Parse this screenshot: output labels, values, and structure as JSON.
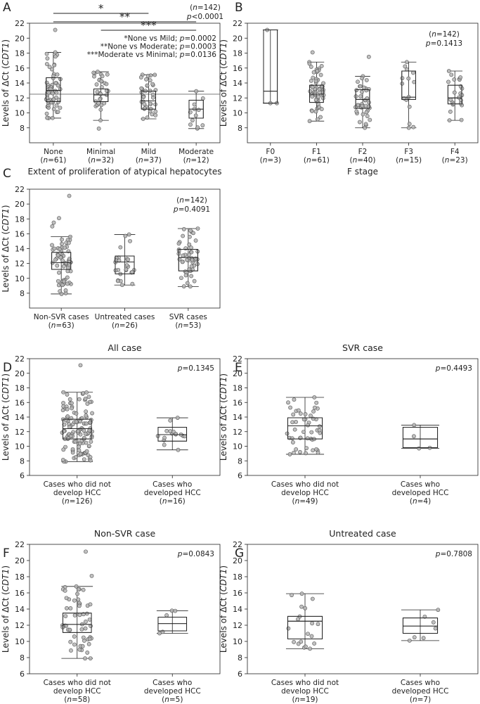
{
  "chart_data": [
    {
      "id": "A",
      "type": "box",
      "panel_label": "A",
      "ylabel": "Levels of ΔCt (CDT1)",
      "xlabel": "Extent of proliferation of atypical hepatocytes",
      "ylim": [
        6,
        22
      ],
      "yticks": [
        8,
        10,
        12,
        14,
        16,
        18,
        20,
        22
      ],
      "n_total": "(n=142)",
      "p_value": "p<0.0001",
      "reference_line": 12.5,
      "annotations": [
        "*None vs Mild; p=0.0002",
        "**None vs Moderate; p=0.0003",
        "***Moderate vs Minimal; p=0.0136"
      ],
      "brackets": [
        {
          "label": "*",
          "from": 0,
          "to": 2
        },
        {
          "label": "**",
          "from": 0,
          "to": 3
        },
        {
          "label": "***",
          "from": 1,
          "to": 3
        }
      ],
      "categories": [
        {
          "label": "None",
          "n": "(n=61)",
          "whisker_low": 9.3,
          "q1": 11.5,
          "median": 13.0,
          "q3": 14.7,
          "whisker_high": 18.1,
          "count": 61,
          "outliers": [
            21.1
          ]
        },
        {
          "label": "Minimal",
          "n": "(n=32)",
          "whisker_low": 9.0,
          "q1": 11.5,
          "median": 12.4,
          "q3": 13.2,
          "whisker_high": 15.5,
          "count": 32,
          "outliers": [
            7.9
          ]
        },
        {
          "label": "Mild",
          "n": "(n=37)",
          "whisker_low": 9.2,
          "q1": 10.5,
          "median": 11.6,
          "q3": 12.9,
          "whisker_high": 15.1,
          "count": 37,
          "outliers": []
        },
        {
          "label": "Moderate",
          "n": "(n=12)",
          "whisker_low": 7.9,
          "q1": 9.3,
          "median": 10.5,
          "q3": 11.7,
          "whisker_high": 12.9,
          "count": 12,
          "outliers": []
        }
      ]
    },
    {
      "id": "B",
      "type": "box",
      "panel_label": "B",
      "ylabel": "Levels of ΔCt (CDT1)",
      "xlabel": "F stage",
      "ylim": [
        6,
        22
      ],
      "yticks": [
        8,
        10,
        12,
        14,
        16,
        18,
        20,
        22
      ],
      "n_total": "(n=142)",
      "p_value": "p=0.1413",
      "categories": [
        {
          "label": "F0",
          "n": "(n=3)",
          "whisker_low": 11.3,
          "q1": 11.3,
          "median": 12.9,
          "q3": 21.1,
          "whisker_high": 21.1,
          "count": 3,
          "outliers": []
        },
        {
          "label": "F1",
          "n": "(n=61)",
          "whisker_low": 8.9,
          "q1": 11.4,
          "median": 12.5,
          "q3": 13.7,
          "whisker_high": 16.8,
          "count": 61,
          "outliers": [
            18.1
          ]
        },
        {
          "label": "F2",
          "n": "(n=40)",
          "whisker_low": 8.0,
          "q1": 10.6,
          "median": 11.8,
          "q3": 13.1,
          "whisker_high": 14.9,
          "count": 40,
          "outliers": [
            17.5
          ]
        },
        {
          "label": "F3",
          "n": "(n=15)",
          "whisker_low": 8.0,
          "q1": 11.8,
          "median": 12.1,
          "q3": 15.6,
          "whisker_high": 16.8,
          "count": 15,
          "outliers": []
        },
        {
          "label": "F4",
          "n": "(n=23)",
          "whisker_low": 9.0,
          "q1": 11.2,
          "median": 12.0,
          "q3": 13.7,
          "whisker_high": 15.6,
          "count": 23,
          "outliers": []
        }
      ]
    },
    {
      "id": "C",
      "type": "box",
      "panel_label": "C",
      "ylabel": "Levels of ΔCt (CDT1)",
      "xlabel": "",
      "ylim": [
        6,
        22
      ],
      "yticks": [
        8,
        10,
        12,
        14,
        16,
        18,
        20,
        22
      ],
      "n_total": "(n=142)",
      "p_value": "p=0.4091",
      "categories": [
        {
          "label": "Non-SVR cases",
          "n": "(n=63)",
          "whisker_low": 7.9,
          "q1": 11.2,
          "median": 12.1,
          "q3": 13.5,
          "whisker_high": 15.6,
          "count": 63,
          "outliers": [
            17.0,
            17.5,
            18.1,
            21.1
          ]
        },
        {
          "label": "Untreated cases",
          "n": "(n=26)",
          "whisker_low": 9.1,
          "q1": 10.6,
          "median": 12.2,
          "q3": 13.0,
          "whisker_high": 15.9,
          "count": 26,
          "outliers": []
        },
        {
          "label": "SVR cases",
          "n": "(n=53)",
          "whisker_low": 8.9,
          "q1": 11.0,
          "median": 12.8,
          "q3": 13.9,
          "whisker_high": 16.7,
          "count": 53,
          "outliers": []
        }
      ]
    },
    {
      "id": "D",
      "type": "box",
      "panel_label": "D",
      "title": "All case",
      "ylabel": "Levels of ΔCt (CDT1)",
      "xlabel": "",
      "ylim": [
        6,
        22
      ],
      "yticks": [
        6,
        8,
        10,
        12,
        14,
        16,
        18,
        20,
        22
      ],
      "n_total": "",
      "p_value": "p=0.1345",
      "categories": [
        {
          "label": "Cases who did not develop HCC",
          "n": "(n=126)",
          "whisker_low": 7.9,
          "q1": 11.0,
          "median": 12.4,
          "q3": 13.7,
          "whisker_high": 17.4,
          "count": 126,
          "outliers": [
            21.1
          ]
        },
        {
          "label": "Cases who developed HCC",
          "n": "(n=16)",
          "whisker_low": 9.5,
          "q1": 10.7,
          "median": 11.6,
          "q3": 12.6,
          "whisker_high": 13.9,
          "count": 16,
          "outliers": []
        }
      ]
    },
    {
      "id": "E",
      "type": "box",
      "panel_label": "E",
      "title": "SVR case",
      "ylabel": "Levels of ΔCt (CDT1)",
      "xlabel": "",
      "ylim": [
        6,
        22
      ],
      "yticks": [
        6,
        8,
        10,
        12,
        14,
        16,
        18,
        20,
        22
      ],
      "n_total": "",
      "p_value": "p=0.4493",
      "categories": [
        {
          "label": "Cases who did not develop HCC",
          "n": "(n=49)",
          "whisker_low": 8.9,
          "q1": 11.0,
          "median": 12.8,
          "q3": 13.9,
          "whisker_high": 16.7,
          "count": 49,
          "outliers": []
        },
        {
          "label": "Cases who developed HCC",
          "n": "(n=4)",
          "whisker_low": 9.7,
          "q1": 9.8,
          "median": 11.0,
          "q3": 12.6,
          "whisker_high": 12.9,
          "count": 4,
          "outliers": []
        }
      ]
    },
    {
      "id": "F",
      "type": "box",
      "panel_label": "F",
      "title": "Non-SVR case",
      "ylabel": "Levels of ΔCt (CDT1)",
      "xlabel": "",
      "ylim": [
        6,
        22
      ],
      "yticks": [
        6,
        8,
        10,
        12,
        14,
        16,
        18,
        20,
        22
      ],
      "n_total": "",
      "p_value": "p=0.0843",
      "categories": [
        {
          "label": "Cases who did not develop HCC",
          "n": "(n=58)",
          "whisker_low": 7.9,
          "q1": 11.1,
          "median": 12.1,
          "q3": 13.5,
          "whisker_high": 16.8,
          "count": 58,
          "outliers": [
            18.1,
            21.1
          ]
        },
        {
          "label": "Cases who developed HCC",
          "n": "(n=5)",
          "whisker_low": 11.0,
          "q1": 11.3,
          "median": 12.2,
          "q3": 13.0,
          "whisker_high": 13.8,
          "count": 5,
          "outliers": []
        }
      ]
    },
    {
      "id": "G",
      "type": "box",
      "panel_label": "G",
      "title": "Untreated case",
      "ylabel": "Levels of ΔCt (CDT1)",
      "xlabel": "",
      "ylim": [
        6,
        22
      ],
      "yticks": [
        6,
        8,
        10,
        12,
        14,
        16,
        18,
        20,
        22
      ],
      "n_total": "",
      "p_value": "p=0.7808",
      "categories": [
        {
          "label": "Cases who did not develop HCC",
          "n": "(n=19)",
          "whisker_low": 9.1,
          "q1": 10.3,
          "median": 12.5,
          "q3": 13.1,
          "whisker_high": 15.9,
          "count": 19,
          "outliers": []
        },
        {
          "label": "Cases who developed HCC",
          "n": "(n=7)",
          "whisker_low": 10.1,
          "q1": 11.0,
          "median": 11.9,
          "q3": 12.9,
          "whisker_high": 13.9,
          "count": 7,
          "outliers": []
        }
      ]
    }
  ],
  "colors": {
    "point_fill": "#b5b5b5",
    "point_stroke": "#555555",
    "box_stroke": "#222222",
    "axis": "#222222"
  }
}
